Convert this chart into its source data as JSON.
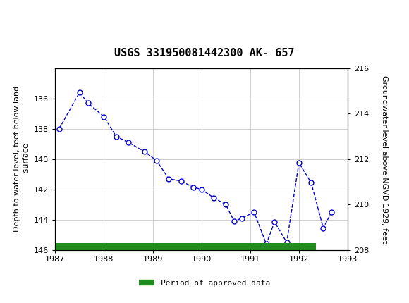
{
  "title": "USGS 331950081442300 AK- 657",
  "ylabel_left": "Depth to water level, feet below land\n surface",
  "ylabel_right": "Groundwater level above NGVD 1929, feet",
  "xlim": [
    1987,
    1993
  ],
  "ylim_left": [
    146.0,
    134.0
  ],
  "ylim_right": [
    208.0,
    216.0
  ],
  "yticks_left": [
    136.0,
    138.0,
    140.0,
    142.0,
    144.0,
    146.0
  ],
  "yticks_right": [
    208.0,
    210.0,
    212.0,
    214.0,
    216.0
  ],
  "xticks": [
    1987,
    1988,
    1989,
    1990,
    1991,
    1992,
    1993
  ],
  "data_x": [
    1987.08,
    1987.5,
    1987.67,
    1988.0,
    1988.25,
    1988.5,
    1988.83,
    1989.08,
    1989.33,
    1989.58,
    1989.83,
    1990.0,
    1990.25,
    1990.5,
    1990.67,
    1990.83,
    1991.08,
    1991.33,
    1991.5,
    1991.75,
    1992.0,
    1992.25,
    1992.5,
    1992.67
  ],
  "data_y": [
    138.0,
    135.6,
    136.3,
    137.2,
    138.5,
    138.9,
    139.5,
    140.1,
    141.3,
    141.45,
    141.85,
    142.0,
    142.55,
    143.0,
    144.1,
    143.9,
    143.5,
    145.6,
    144.15,
    145.5,
    140.25,
    141.55,
    144.55,
    143.5
  ],
  "line_color": "#0000cc",
  "marker_edge_color": "#0000cc",
  "marker_size": 5,
  "green_bar_color": "#228B22",
  "green_bar_xstart": 1987.0,
  "green_bar_xend": 1992.35,
  "background_color": "#ffffff",
  "grid_color": "#c8c8c8",
  "header_bg": "#1e7a40",
  "title_fontsize": 11,
  "label_fontsize": 8,
  "tick_fontsize": 8
}
